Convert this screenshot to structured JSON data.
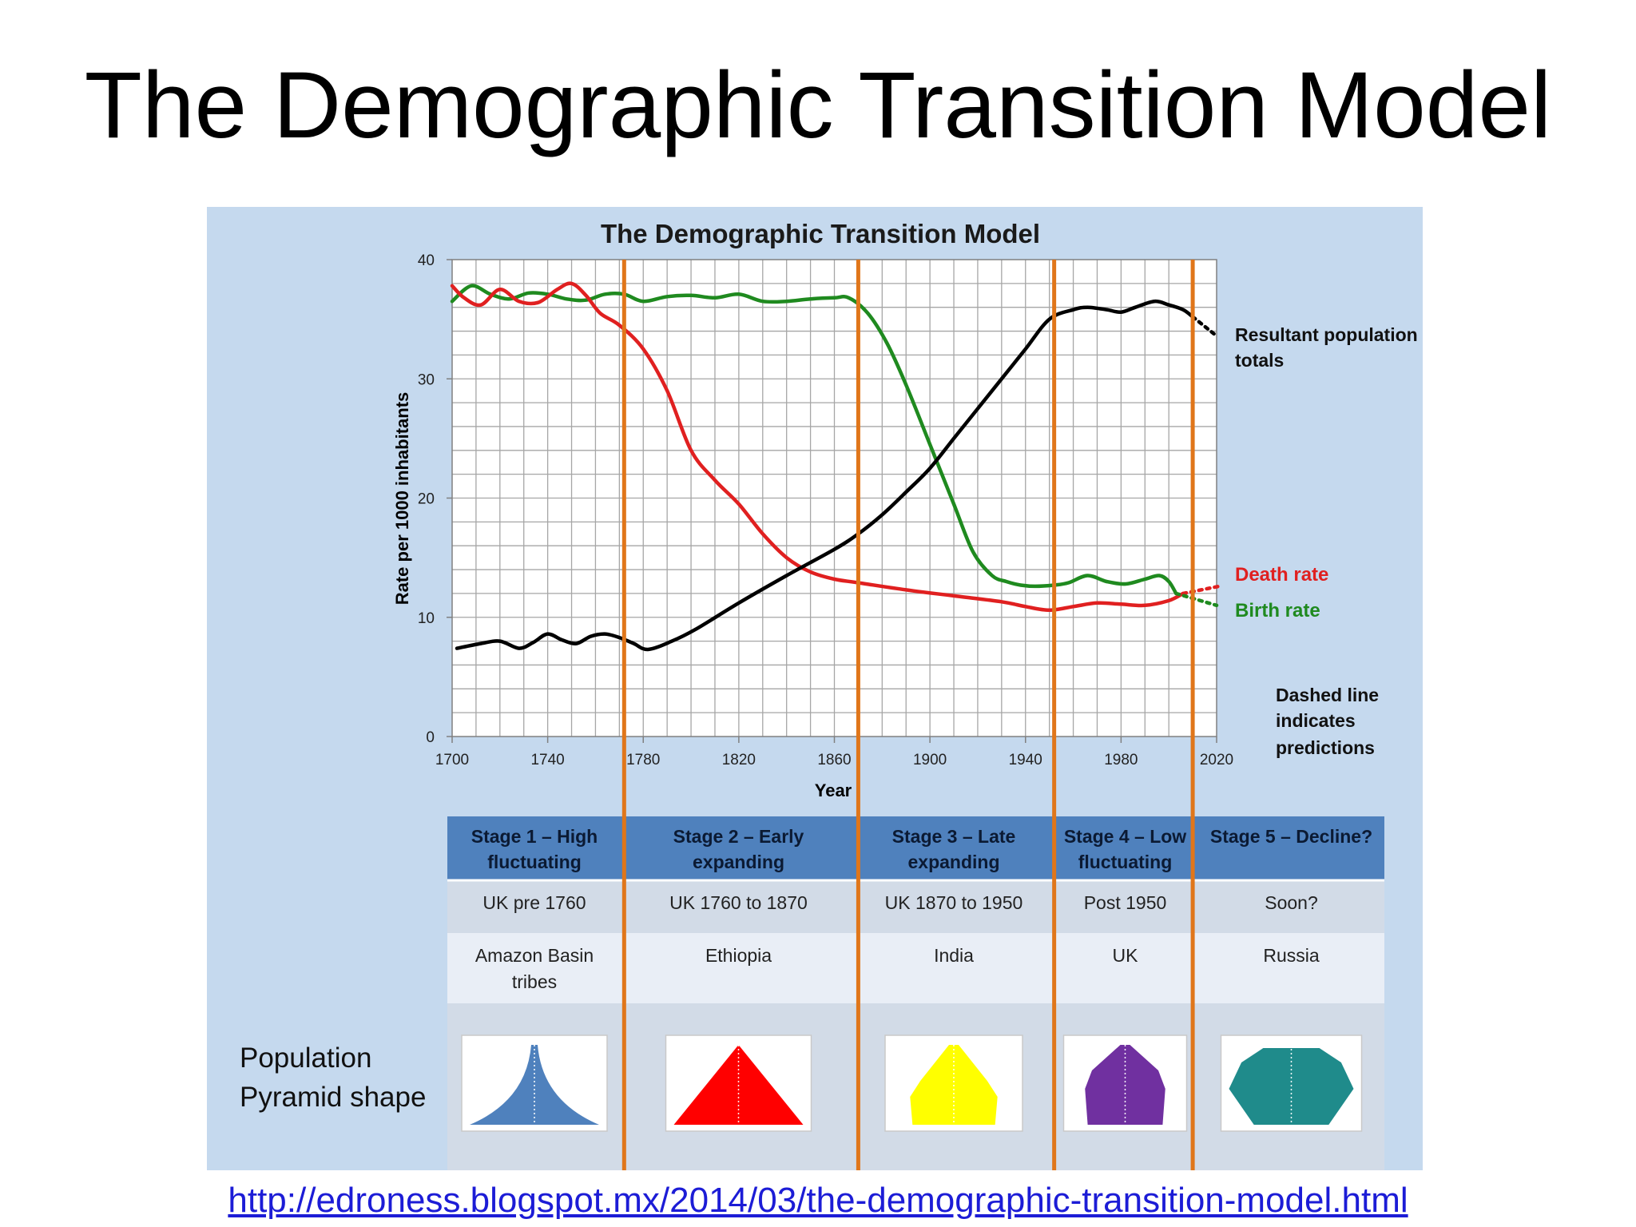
{
  "slide": {
    "title": "The Demographic Transition Model",
    "link": "http://edroness.blogspot.mx/2014/03/the-demographic-transition-model.html"
  },
  "chart_data": {
    "type": "line",
    "title": "The Demographic Transition Model",
    "xlabel": "Year",
    "ylabel": "Rate per 1000 inhabitants",
    "xlim": [
      1700,
      2020
    ],
    "ylim": [
      0,
      40
    ],
    "xticks": [
      1700,
      1740,
      1780,
      1820,
      1860,
      1900,
      1940,
      1980,
      2020
    ],
    "yticks": [
      0,
      10,
      20,
      30,
      40
    ],
    "grid": true,
    "series": [
      {
        "name": "Birth rate",
        "color": "#1f8a1f",
        "x": [
          1700,
          1708,
          1716,
          1724,
          1732,
          1740,
          1748,
          1756,
          1764,
          1772,
          1780,
          1790,
          1800,
          1810,
          1820,
          1830,
          1840,
          1850,
          1860,
          1866,
          1874,
          1882,
          1890,
          1900,
          1910,
          1918,
          1926,
          1932,
          1938,
          1944,
          1952,
          1958,
          1966,
          1974,
          1982,
          1990,
          1996,
          2000,
          2003
        ],
        "y": [
          36.5,
          37.8,
          37.1,
          36.7,
          37.2,
          37.1,
          36.7,
          36.6,
          37.1,
          37.1,
          36.5,
          36.9,
          37.0,
          36.8,
          37.1,
          36.5,
          36.5,
          36.7,
          36.8,
          36.8,
          35.5,
          33.0,
          29.5,
          24.5,
          19.5,
          15.5,
          13.5,
          13.0,
          12.7,
          12.6,
          12.7,
          12.9,
          13.5,
          13.0,
          12.8,
          13.2,
          13.5,
          13.0,
          12.0
        ]
      },
      {
        "name": "Death rate",
        "color": "#e02020",
        "x": [
          1700,
          1705,
          1712,
          1720,
          1728,
          1736,
          1744,
          1750,
          1756,
          1762,
          1770,
          1780,
          1790,
          1800,
          1810,
          1820,
          1830,
          1840,
          1850,
          1860,
          1870,
          1890,
          1910,
          1930,
          1940,
          1950,
          1960,
          1970,
          1980,
          1990,
          2000,
          2006
        ],
        "y": [
          37.8,
          36.8,
          36.2,
          37.5,
          36.5,
          36.4,
          37.5,
          38.0,
          37.0,
          35.5,
          34.5,
          32.5,
          29.0,
          24.0,
          21.5,
          19.5,
          17.0,
          15.0,
          13.8,
          13.2,
          12.9,
          12.3,
          11.8,
          11.3,
          10.9,
          10.6,
          10.9,
          11.2,
          11.1,
          11.0,
          11.4,
          12.0
        ]
      },
      {
        "name": "Resultant population totals",
        "color": "#000000",
        "x": [
          1702,
          1712,
          1720,
          1728,
          1734,
          1740,
          1746,
          1752,
          1758,
          1764,
          1770,
          1776,
          1782,
          1792,
          1802,
          1820,
          1840,
          1860,
          1870,
          1880,
          1890,
          1900,
          1910,
          1920,
          1930,
          1940,
          1950,
          1960,
          1966,
          1974,
          1980,
          1986,
          1994,
          2000,
          2006,
          2010
        ],
        "y": [
          7.4,
          7.8,
          8.0,
          7.4,
          7.9,
          8.6,
          8.1,
          7.8,
          8.4,
          8.6,
          8.3,
          7.8,
          7.3,
          8.0,
          9.0,
          11.2,
          13.5,
          15.7,
          17.0,
          18.6,
          20.5,
          22.5,
          25.0,
          27.5,
          30.0,
          32.5,
          35.0,
          35.8,
          36.0,
          35.8,
          35.6,
          36.0,
          36.5,
          36.2,
          35.8,
          35.2
        ]
      }
    ],
    "predictions": [
      {
        "name": "Resultant population totals",
        "color": "#000000",
        "x": [
          2010,
          2020
        ],
        "y": [
          35.2,
          33.6
        ]
      },
      {
        "name": "Death rate",
        "color": "#e02020",
        "x": [
          2006,
          2021
        ],
        "y": [
          12.0,
          12.6
        ]
      },
      {
        "name": "Birth rate",
        "color": "#1f8a1f",
        "x": [
          2003,
          2020
        ],
        "y": [
          12.0,
          11.0
        ]
      }
    ],
    "stage_dividers_x": [
      1772,
      1870,
      1952,
      2010
    ],
    "annotations": {
      "population": [
        "Resultant population",
        "totals"
      ],
      "death": "Death rate",
      "birth": "Birth rate",
      "dashed": [
        "Dashed line",
        "indicates",
        "predictions"
      ]
    }
  },
  "table": {
    "stages": [
      {
        "title": [
          "Stage 1 – High",
          "fluctuating"
        ],
        "example": "UK pre 1760",
        "country": [
          "Amazon Basin",
          "tribes"
        ],
        "pyramid_color": "#4f81bd",
        "pyramid_shape": "concave"
      },
      {
        "title": [
          "Stage 2 – Early",
          "expanding"
        ],
        "example": "UK 1760 to 1870",
        "country": [
          "Ethiopia"
        ],
        "pyramid_color": "#ff0000",
        "pyramid_shape": "triangle"
      },
      {
        "title": [
          "Stage 3 – Late",
          "expanding"
        ],
        "example": "UK  1870 to 1950",
        "country": [
          "India"
        ],
        "pyramid_color": "#ffff00",
        "pyramid_shape": "beehive"
      },
      {
        "title": [
          "Stage 4 – Low",
          "fluctuating"
        ],
        "example": "Post 1950",
        "country": [
          "UK"
        ],
        "pyramid_color": "#7030a0",
        "pyramid_shape": "column"
      },
      {
        "title": [
          "Stage 5 – Decline?"
        ],
        "example": "Soon?",
        "country": [
          "Russia"
        ],
        "pyramid_color": "#1f8b8b",
        "pyramid_shape": "inverted"
      }
    ],
    "row_label": [
      "Population",
      "Pyramid shape"
    ]
  }
}
